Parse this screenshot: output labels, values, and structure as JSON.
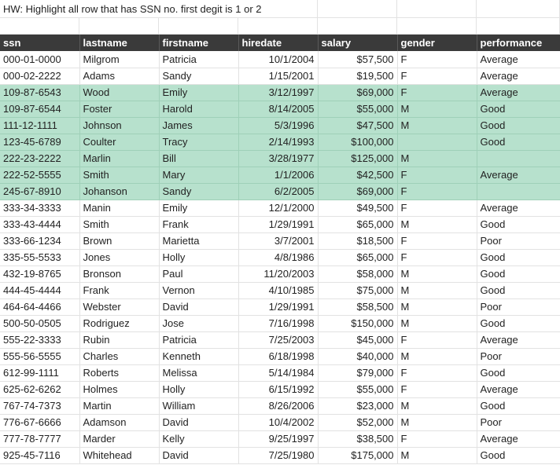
{
  "note": "HW: Highlight all row that has SSN no. first degit is 1 or 2",
  "headers": [
    "ssn",
    "lastname",
    "firstname",
    "hiredate",
    "salary",
    "gender",
    "performance"
  ],
  "rows": [
    {
      "ssn": "000-01-0000",
      "lastname": "Milgrom",
      "firstname": "Patricia",
      "hiredate": "10/1/2004",
      "salary": "$57,500",
      "gender": "F",
      "performance": "Average",
      "highlight": false
    },
    {
      "ssn": "000-02-2222",
      "lastname": "Adams",
      "firstname": "Sandy",
      "hiredate": "1/15/2001",
      "salary": "$19,500",
      "gender": "F",
      "performance": "Average",
      "highlight": false
    },
    {
      "ssn": "109-87-6543",
      "lastname": "Wood",
      "firstname": "Emily",
      "hiredate": "3/12/1997",
      "salary": "$69,000",
      "gender": "F",
      "performance": "Average",
      "highlight": true
    },
    {
      "ssn": "109-87-6544",
      "lastname": "Foster",
      "firstname": "Harold",
      "hiredate": "8/14/2005",
      "salary": "$55,000",
      "gender": "M",
      "performance": "Good",
      "highlight": true
    },
    {
      "ssn": "111-12-1111",
      "lastname": "Johnson",
      "firstname": "James",
      "hiredate": "5/3/1996",
      "salary": "$47,500",
      "gender": "M",
      "performance": "Good",
      "highlight": true
    },
    {
      "ssn": "123-45-6789",
      "lastname": "Coulter",
      "firstname": "Tracy",
      "hiredate": "2/14/1993",
      "salary": "$100,000",
      "gender": "",
      "performance": "Good",
      "highlight": true
    },
    {
      "ssn": "222-23-2222",
      "lastname": "Marlin",
      "firstname": "Bill",
      "hiredate": "3/28/1977",
      "salary": "$125,000",
      "gender": "M",
      "performance": "",
      "highlight": true
    },
    {
      "ssn": "222-52-5555",
      "lastname": "Smith",
      "firstname": "Mary",
      "hiredate": "1/1/2006",
      "salary": "$42,500",
      "gender": "F",
      "performance": "Average",
      "highlight": true
    },
    {
      "ssn": "245-67-8910",
      "lastname": "Johanson",
      "firstname": "Sandy",
      "hiredate": "6/2/2005",
      "salary": "$69,000",
      "gender": "F",
      "performance": "",
      "highlight": true
    },
    {
      "ssn": "333-34-3333",
      "lastname": "Manin",
      "firstname": "Emily",
      "hiredate": "12/1/2000",
      "salary": "$49,500",
      "gender": "F",
      "performance": "Average",
      "highlight": false
    },
    {
      "ssn": "333-43-4444",
      "lastname": "Smith",
      "firstname": "Frank",
      "hiredate": "1/29/1991",
      "salary": "$65,000",
      "gender": "M",
      "performance": "Good",
      "highlight": false
    },
    {
      "ssn": "333-66-1234",
      "lastname": "Brown",
      "firstname": "Marietta",
      "hiredate": "3/7/2001",
      "salary": "$18,500",
      "gender": "F",
      "performance": "Poor",
      "highlight": false
    },
    {
      "ssn": "335-55-5533",
      "lastname": "Jones",
      "firstname": "Holly",
      "hiredate": "4/8/1986",
      "salary": "$65,000",
      "gender": "F",
      "performance": "Good",
      "highlight": false
    },
    {
      "ssn": "432-19-8765",
      "lastname": "Bronson",
      "firstname": "Paul",
      "hiredate": "11/20/2003",
      "salary": "$58,000",
      "gender": "M",
      "performance": "Good",
      "highlight": false
    },
    {
      "ssn": "444-45-4444",
      "lastname": "Frank",
      "firstname": "Vernon",
      "hiredate": "4/10/1985",
      "salary": "$75,000",
      "gender": "M",
      "performance": "Good",
      "highlight": false
    },
    {
      "ssn": "464-64-4466",
      "lastname": "Webster",
      "firstname": "David",
      "hiredate": "1/29/1991",
      "salary": "$58,500",
      "gender": "M",
      "performance": "Poor",
      "highlight": false
    },
    {
      "ssn": "500-50-0505",
      "lastname": "Rodriguez",
      "firstname": "Jose",
      "hiredate": "7/16/1998",
      "salary": "$150,000",
      "gender": "M",
      "performance": "Good",
      "highlight": false
    },
    {
      "ssn": "555-22-3333",
      "lastname": "Rubin",
      "firstname": "Patricia",
      "hiredate": "7/25/2003",
      "salary": "$45,000",
      "gender": "F",
      "performance": "Average",
      "highlight": false
    },
    {
      "ssn": "555-56-5555",
      "lastname": "Charles",
      "firstname": "Kenneth",
      "hiredate": "6/18/1998",
      "salary": "$40,000",
      "gender": "M",
      "performance": "Poor",
      "highlight": false
    },
    {
      "ssn": "612-99-1111",
      "lastname": "Roberts",
      "firstname": "Melissa",
      "hiredate": "5/14/1984",
      "salary": "$79,000",
      "gender": "F",
      "performance": "Good",
      "highlight": false
    },
    {
      "ssn": "625-62-6262",
      "lastname": "Holmes",
      "firstname": "Holly",
      "hiredate": "6/15/1992",
      "salary": "$55,000",
      "gender": "F",
      "performance": "Average",
      "highlight": false
    },
    {
      "ssn": "767-74-7373",
      "lastname": "Martin",
      "firstname": "William",
      "hiredate": "8/26/2006",
      "salary": "$23,000",
      "gender": "M",
      "performance": "Good",
      "highlight": false
    },
    {
      "ssn": "776-67-6666",
      "lastname": "Adamson",
      "firstname": "David",
      "hiredate": "10/4/2002",
      "salary": "$52,000",
      "gender": "M",
      "performance": "Poor",
      "highlight": false
    },
    {
      "ssn": "777-78-7777",
      "lastname": "Marder",
      "firstname": "Kelly",
      "hiredate": "9/25/1997",
      "salary": "$38,500",
      "gender": "F",
      "performance": "Average",
      "highlight": false
    },
    {
      "ssn": "925-45-7116",
      "lastname": "Whitehead",
      "firstname": "David",
      "hiredate": "7/25/1980",
      "salary": "$175,000",
      "gender": "M",
      "performance": "Good",
      "highlight": false
    }
  ],
  "colors": {
    "header_bg": "#3a3a3a",
    "header_text": "#ffffff",
    "highlight": "#b7e1cd",
    "grid": "#e2e2e2"
  }
}
